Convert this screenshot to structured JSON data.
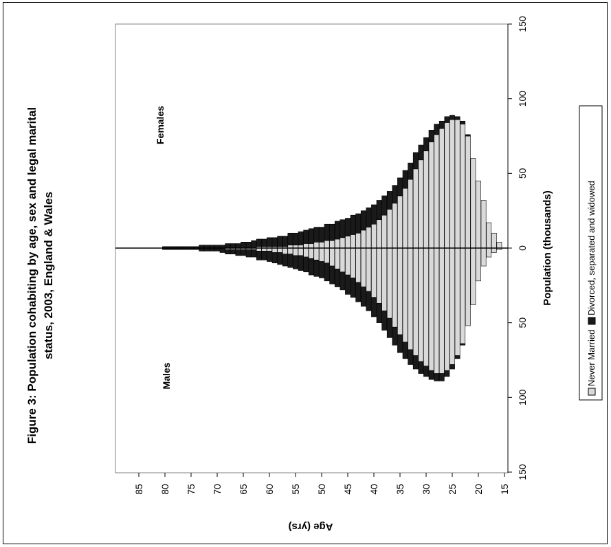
{
  "chart_data": {
    "type": "bar",
    "orientation": "population-pyramid",
    "title": [
      "Figure 3: Population cohabiting by age, sex and legal marital",
      "status, 2003, England & Wales"
    ],
    "xlabel": "Population (thousands)",
    "ylabel": "Age (yrs)",
    "population_ticks": [
      "150",
      "100",
      "50",
      "0",
      "50",
      "100",
      "150"
    ],
    "population_tick_values": [
      -150,
      -100,
      -50,
      0,
      50,
      100,
      150
    ],
    "age_ticks": [
      "15",
      "20",
      "25",
      "30",
      "35",
      "40",
      "45",
      "50",
      "55",
      "60",
      "65",
      "70",
      "75",
      "80",
      "85"
    ],
    "xlim": [
      -150,
      150
    ],
    "age_range": [
      16,
      89
    ],
    "annotations": {
      "males": "Males",
      "females": "Females"
    },
    "legend": {
      "position": "bottom",
      "entries": [
        {
          "label": "Never Married",
          "color": "#d9d9d9"
        },
        {
          "label": "Divorced, separated and widowed",
          "color": "#1a1a1a"
        }
      ]
    },
    "ages": [
      16,
      17,
      18,
      19,
      20,
      21,
      22,
      23,
      24,
      25,
      26,
      27,
      28,
      29,
      30,
      31,
      32,
      33,
      34,
      35,
      36,
      37,
      38,
      39,
      40,
      41,
      42,
      43,
      44,
      45,
      46,
      47,
      48,
      49,
      50,
      51,
      52,
      53,
      54,
      55,
      56,
      57,
      58,
      59,
      60,
      61,
      62,
      63,
      64,
      65,
      66,
      67,
      68,
      69,
      70,
      71,
      72,
      73,
      74,
      75,
      76,
      77,
      78,
      79,
      80,
      81,
      82,
      83,
      84,
      85,
      86,
      87,
      88,
      89
    ],
    "series": [
      {
        "name": "Never Married",
        "sex": "Males",
        "values": [
          1,
          3,
          6,
          12,
          22,
          38,
          52,
          64,
          72,
          78,
          82,
          84,
          84,
          82,
          79,
          76,
          72,
          68,
          63,
          58,
          53,
          47,
          42,
          37,
          33,
          29,
          26,
          23,
          20,
          18,
          16,
          14,
          12,
          10,
          9,
          8,
          7,
          6,
          5,
          5,
          4,
          4,
          3,
          3,
          2,
          2,
          2,
          1,
          1,
          1,
          1,
          1,
          1,
          0,
          0,
          0,
          0,
          0,
          0,
          0,
          0,
          0,
          0,
          0,
          0,
          0,
          0,
          0,
          0,
          0,
          0,
          0,
          0,
          0
        ]
      },
      {
        "name": "Divorced, separated and widowed",
        "sex": "Males",
        "values": [
          0,
          0,
          0,
          0,
          0,
          0,
          0,
          1,
          2,
          3,
          4,
          5,
          5,
          6,
          7,
          8,
          9,
          10,
          11,
          12,
          12,
          13,
          13,
          13,
          13,
          13,
          13,
          13,
          13,
          13,
          12,
          12,
          12,
          12,
          11,
          11,
          11,
          10,
          10,
          9,
          9,
          8,
          8,
          7,
          7,
          6,
          6,
          5,
          5,
          4,
          4,
          3,
          3,
          3,
          2,
          2,
          2,
          2,
          1,
          1,
          1,
          1,
          1,
          1,
          1,
          0,
          0,
          0,
          0,
          0,
          0,
          0,
          0,
          0
        ]
      },
      {
        "name": "Never Married",
        "sex": "Females",
        "values": [
          4,
          10,
          17,
          32,
          45,
          60,
          75,
          83,
          86,
          86,
          84,
          80,
          76,
          71,
          65,
          59,
          53,
          46,
          40,
          35,
          30,
          26,
          22,
          19,
          16,
          14,
          12,
          10,
          9,
          8,
          7,
          6,
          5,
          5,
          4,
          4,
          3,
          3,
          2,
          2,
          2,
          1,
          1,
          1,
          1,
          1,
          1,
          0,
          0,
          0,
          0,
          0,
          0,
          0,
          0,
          0,
          0,
          0,
          0,
          0,
          0,
          0,
          0,
          0,
          0,
          0,
          0,
          0,
          0,
          0,
          0,
          0,
          0,
          0
        ]
      },
      {
        "name": "Divorced, separated and widowed",
        "sex": "Females",
        "values": [
          0,
          0,
          0,
          0,
          0,
          0,
          1,
          2,
          2,
          3,
          4,
          5,
          7,
          8,
          9,
          10,
          11,
          11,
          12,
          12,
          12,
          12,
          13,
          13,
          13,
          13,
          13,
          13,
          13,
          12,
          12,
          12,
          11,
          11,
          10,
          10,
          10,
          9,
          9,
          8,
          8,
          7,
          7,
          6,
          6,
          5,
          5,
          5,
          4,
          4,
          3,
          3,
          3,
          2,
          2,
          2,
          2,
          2,
          1,
          1,
          1,
          1,
          1,
          1,
          1,
          0,
          0,
          0,
          0,
          0,
          0,
          0,
          0,
          0
        ]
      }
    ]
  }
}
